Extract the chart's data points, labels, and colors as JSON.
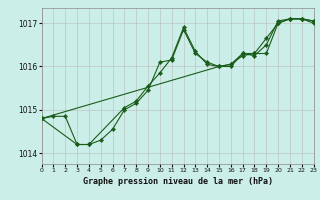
{
  "bg_color": "#cceee8",
  "grid_color": "#bbbbbb",
  "line_color": "#1a5c1a",
  "marker_color": "#1a5c1a",
  "xlabel": "Graphe pression niveau de la mer (hPa)",
  "xlim": [
    0,
    23
  ],
  "ylim": [
    1013.75,
    1017.35
  ],
  "yticks": [
    1014,
    1015,
    1016,
    1017
  ],
  "xticks": [
    0,
    1,
    2,
    3,
    4,
    5,
    6,
    7,
    8,
    9,
    10,
    11,
    12,
    13,
    14,
    15,
    16,
    17,
    18,
    19,
    20,
    21,
    22,
    23
  ],
  "series": [
    {
      "x": [
        0,
        1,
        2,
        3,
        4,
        5,
        6,
        7,
        8,
        9,
        10,
        11,
        12,
        13,
        14,
        15,
        16,
        17,
        18,
        19,
        20,
        21,
        22,
        23
      ],
      "y": [
        1014.8,
        1014.85,
        1014.85,
        1014.2,
        1014.2,
        1014.3,
        1014.55,
        1015.0,
        1015.15,
        1015.45,
        1016.1,
        1016.15,
        1016.85,
        1016.3,
        1016.1,
        1016.0,
        1016.05,
        1016.25,
        1016.3,
        1016.3,
        1017.0,
        1017.1,
        1017.1,
        1017.05
      ]
    },
    {
      "x": [
        0,
        3,
        4,
        7,
        8,
        9,
        10,
        11,
        12,
        13,
        14,
        15,
        16,
        17,
        18,
        19,
        20,
        21,
        22,
        23
      ],
      "y": [
        1014.8,
        1014.2,
        1014.2,
        1015.05,
        1015.2,
        1015.55,
        1015.85,
        1016.2,
        1016.9,
        1016.35,
        1016.05,
        1016.0,
        1016.0,
        1016.3,
        1016.25,
        1016.5,
        1017.05,
        1017.1,
        1017.1,
        1017.0
      ]
    },
    {
      "x": [
        0,
        15,
        16,
        17,
        18,
        19,
        20,
        21,
        22,
        23
      ],
      "y": [
        1014.8,
        1016.0,
        1016.05,
        1016.3,
        1016.3,
        1016.65,
        1017.0,
        1017.1,
        1017.1,
        1017.05
      ]
    }
  ]
}
